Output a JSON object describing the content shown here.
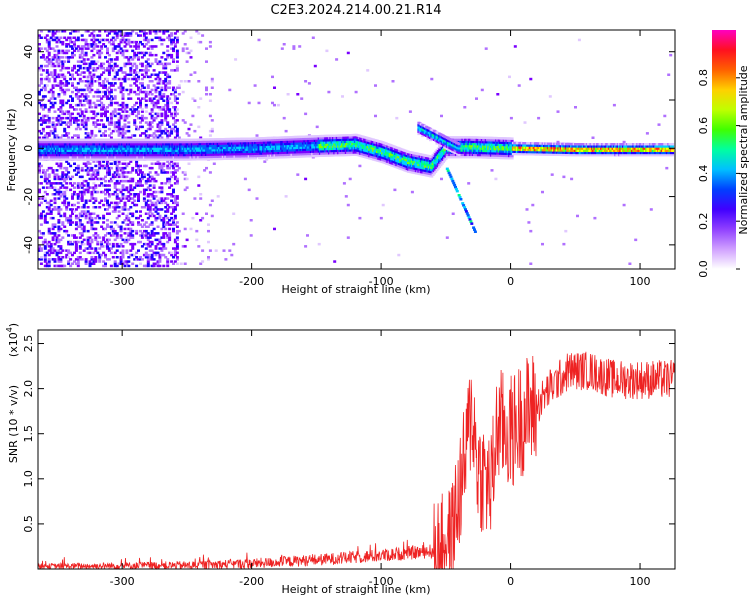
{
  "title": "C2E3.2024.214.00.21.R14",
  "colors": {
    "snr_line": "#ee2222",
    "colormap": [
      "#ffffff",
      "#e0c8ff",
      "#b070ff",
      "#7a00ff",
      "#2000ff",
      "#0060ff",
      "#00d0ff",
      "#00ff80",
      "#80ff00",
      "#ffff00",
      "#ff9000",
      "#ff2020",
      "#ff00a0"
    ]
  },
  "chart_data": [
    {
      "type": "heatmap",
      "title": "C2E3.2024.214.00.21.R14",
      "xlabel": "Height of straight line (km)",
      "ylabel": "Frequency (Hz)",
      "xlim": [
        -365,
        127
      ],
      "ylim": [
        -50,
        49
      ],
      "x_ticks": [
        -300,
        -200,
        -100,
        0,
        100
      ],
      "y_ticks": [
        -40,
        -20,
        0,
        20,
        40
      ],
      "colorbar": {
        "label": "Normalized spectral amplitude",
        "range": [
          0,
          1
        ],
        "ticks": [
          "0.0",
          "0.2",
          "0.4",
          "0.6",
          "0.8"
        ]
      },
      "ridge": [
        {
          "x": -365,
          "y": 0.0
        },
        {
          "x": -300,
          "y": 0.0
        },
        {
          "x": -250,
          "y": 0.0
        },
        {
          "x": -200,
          "y": 0.5
        },
        {
          "x": -150,
          "y": 1.5
        },
        {
          "x": -120,
          "y": 2.0
        },
        {
          "x": -100,
          "y": -1.0
        },
        {
          "x": -80,
          "y": -5.0
        },
        {
          "x": -62,
          "y": -7.0
        },
        {
          "x": -50,
          "y": 1.0
        },
        {
          "x": -30,
          "y": 1.0
        },
        {
          "x": 0,
          "y": 0.5
        },
        {
          "x": 50,
          "y": 0.0
        },
        {
          "x": 127,
          "y": 0.0
        }
      ]
    },
    {
      "type": "line",
      "xlabel": "Height of straight line (km)",
      "ylabel": "SNR (10 * v/v)",
      "y_multiplier": "(x10",
      "y_multiplier_exp": "4",
      "y_multiplier_close": ")",
      "xlim": [
        -365,
        127
      ],
      "ylim": [
        0,
        2.65
      ],
      "x_ticks": [
        -300,
        -200,
        -100,
        0,
        100
      ],
      "y_ticks": [
        0.5,
        1.0,
        1.5,
        2.0,
        2.5
      ],
      "series": [
        {
          "color": "#ee2222",
          "trend": [
            {
              "x": -365,
              "y": 0.03
            },
            {
              "x": -250,
              "y": 0.04
            },
            {
              "x": -200,
              "y": 0.06
            },
            {
              "x": -150,
              "y": 0.1
            },
            {
              "x": -100,
              "y": 0.15
            },
            {
              "x": -60,
              "y": 0.2
            },
            {
              "x": -45,
              "y": 0.4
            },
            {
              "x": -35,
              "y": 1.2
            },
            {
              "x": -30,
              "y": 1.8
            },
            {
              "x": -25,
              "y": 1.1
            },
            {
              "x": -15,
              "y": 0.9
            },
            {
              "x": -10,
              "y": 1.6
            },
            {
              "x": 0,
              "y": 1.5
            },
            {
              "x": 10,
              "y": 1.7
            },
            {
              "x": 20,
              "y": 1.8
            },
            {
              "x": 30,
              "y": 2.0
            },
            {
              "x": 45,
              "y": 2.2
            },
            {
              "x": 60,
              "y": 2.2
            },
            {
              "x": 80,
              "y": 2.1
            },
            {
              "x": 100,
              "y": 2.1
            },
            {
              "x": 127,
              "y": 2.1
            }
          ]
        }
      ]
    }
  ]
}
